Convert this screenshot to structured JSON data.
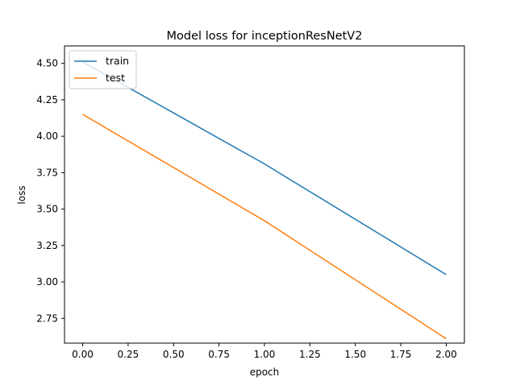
{
  "chart_data": {
    "type": "line",
    "title": "Model loss for inceptionResNetV2",
    "xlabel": "epoch",
    "ylabel": "loss",
    "xlim": [
      -0.1,
      2.1
    ],
    "ylim": [
      2.58,
      4.62
    ],
    "x_ticks": [
      0.0,
      0.25,
      0.5,
      0.75,
      1.0,
      1.25,
      1.5,
      1.75,
      2.0
    ],
    "x_tick_labels": [
      "0.00",
      "0.25",
      "0.50",
      "0.75",
      "1.00",
      "1.25",
      "1.50",
      "1.75",
      "2.00"
    ],
    "y_ticks": [
      2.75,
      3.0,
      3.25,
      3.5,
      3.75,
      4.0,
      4.25,
      4.5
    ],
    "y_tick_labels": [
      "2.75",
      "3.00",
      "3.25",
      "3.50",
      "3.75",
      "4.00",
      "4.25",
      "4.50"
    ],
    "x": [
      0,
      1,
      2
    ],
    "series": [
      {
        "name": "train",
        "color": "#1f77b4",
        "values": [
          4.51,
          3.81,
          3.05
        ]
      },
      {
        "name": "test",
        "color": "#ff7f0e",
        "values": [
          4.15,
          3.42,
          2.61
        ]
      }
    ],
    "legend": "upper left",
    "grid": false
  }
}
